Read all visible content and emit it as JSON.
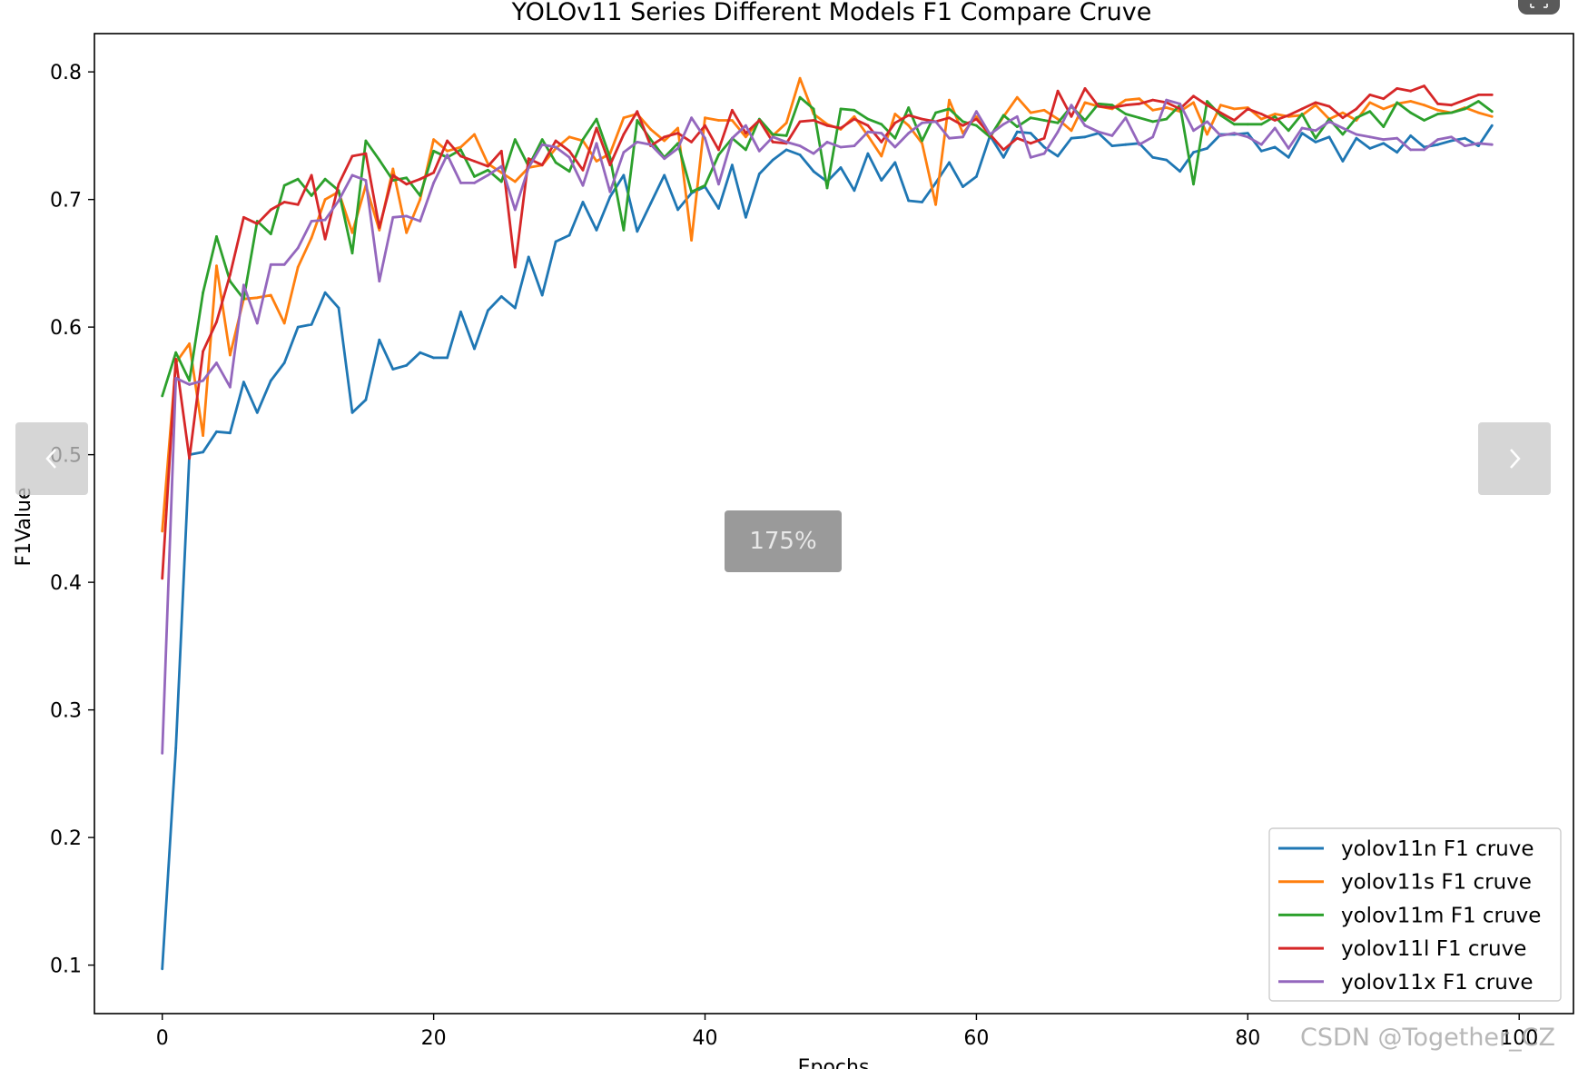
{
  "viewer": {
    "zoom_label": "175%",
    "watermark": "CSDN @Together_CZ",
    "prev_icon": "chevron-left-icon",
    "next_icon": "chevron-right-icon",
    "fullscreen_icon": "fullscreen-icon"
  },
  "chart_data": {
    "type": "line",
    "title": "YOLOv11 Series Different Models F1 Compare Cruve",
    "xlabel": "Epochs",
    "ylabel": "F1Value",
    "xlim": [
      -5,
      104
    ],
    "ylim": [
      0.062,
      0.83
    ],
    "xticks": [
      0,
      20,
      40,
      60,
      80,
      100
    ],
    "xtick_labels": [
      "0",
      "20",
      "40",
      "60",
      "80",
      "100"
    ],
    "yticks": [
      0.1,
      0.2,
      0.3,
      0.4,
      0.5,
      0.6,
      0.7,
      0.8
    ],
    "ytick_labels": [
      "0.1",
      "0.2",
      "0.3",
      "0.4",
      "0.5",
      "0.6",
      "0.7",
      "0.8"
    ],
    "grid": false,
    "legend_position": "bottom-right",
    "series": [
      {
        "name": "yolov11n F1 cruve",
        "color": "#1f77b4",
        "values": [
          0.097,
          0.27,
          0.5,
          0.502,
          0.518,
          0.517,
          0.557,
          0.533,
          0.558,
          0.572,
          0.6,
          0.602,
          0.627,
          0.615,
          0.533,
          0.543,
          0.59,
          0.567,
          0.57,
          0.58,
          0.576,
          0.576,
          0.612,
          0.583,
          0.613,
          0.624,
          0.615,
          0.655,
          0.625,
          0.667,
          0.672,
          0.698,
          0.676,
          0.702,
          0.719,
          0.675,
          0.697,
          0.719,
          0.692,
          0.705,
          0.71,
          0.693,
          0.727,
          0.686,
          0.72,
          0.731,
          0.739,
          0.735,
          0.722,
          0.714,
          0.725,
          0.707,
          0.736,
          0.715,
          0.729,
          0.699,
          0.698,
          0.713,
          0.729,
          0.71,
          0.718,
          0.75,
          0.733,
          0.753,
          0.752,
          0.741,
          0.734,
          0.748,
          0.749,
          0.752,
          0.742,
          0.743,
          0.744,
          0.733,
          0.731,
          0.722,
          0.737,
          0.74,
          0.751,
          0.751,
          0.752,
          0.738,
          0.741,
          0.733,
          0.752,
          0.745,
          0.749,
          0.73,
          0.748,
          0.74,
          0.744,
          0.737,
          0.75,
          0.741,
          0.743,
          0.746,
          0.748,
          0.742,
          0.758
        ]
      },
      {
        "name": "yolov11s F1 cruve",
        "color": "#ff7f0e",
        "values": [
          0.44,
          0.572,
          0.587,
          0.515,
          0.648,
          0.578,
          0.622,
          0.623,
          0.625,
          0.603,
          0.647,
          0.67,
          0.7,
          0.706,
          0.674,
          0.711,
          0.676,
          0.724,
          0.674,
          0.7,
          0.747,
          0.738,
          0.741,
          0.751,
          0.728,
          0.721,
          0.714,
          0.725,
          0.727,
          0.74,
          0.749,
          0.746,
          0.73,
          0.736,
          0.764,
          0.767,
          0.755,
          0.746,
          0.756,
          0.668,
          0.764,
          0.762,
          0.762,
          0.749,
          0.762,
          0.75,
          0.76,
          0.795,
          0.767,
          0.759,
          0.755,
          0.765,
          0.75,
          0.734,
          0.767,
          0.758,
          0.744,
          0.696,
          0.778,
          0.752,
          0.765,
          0.749,
          0.765,
          0.78,
          0.768,
          0.77,
          0.763,
          0.754,
          0.776,
          0.773,
          0.771,
          0.778,
          0.779,
          0.77,
          0.772,
          0.769,
          0.776,
          0.751,
          0.774,
          0.771,
          0.772,
          0.763,
          0.767,
          0.765,
          0.766,
          0.774,
          0.763,
          0.768,
          0.762,
          0.776,
          0.771,
          0.775,
          0.777,
          0.774,
          0.77,
          0.768,
          0.772,
          0.768,
          0.765
        ]
      },
      {
        "name": "yolov11m F1 cruve",
        "color": "#2ca02c",
        "values": [
          0.546,
          0.58,
          0.558,
          0.627,
          0.671,
          0.636,
          0.622,
          0.683,
          0.673,
          0.711,
          0.716,
          0.703,
          0.716,
          0.707,
          0.658,
          0.746,
          0.731,
          0.715,
          0.717,
          0.703,
          0.738,
          0.733,
          0.739,
          0.718,
          0.723,
          0.714,
          0.747,
          0.726,
          0.747,
          0.729,
          0.722,
          0.747,
          0.763,
          0.733,
          0.676,
          0.762,
          0.747,
          0.733,
          0.744,
          0.706,
          0.711,
          0.735,
          0.748,
          0.739,
          0.763,
          0.751,
          0.75,
          0.78,
          0.771,
          0.709,
          0.771,
          0.77,
          0.763,
          0.759,
          0.748,
          0.772,
          0.746,
          0.768,
          0.771,
          0.761,
          0.758,
          0.749,
          0.766,
          0.757,
          0.764,
          0.762,
          0.76,
          0.773,
          0.762,
          0.775,
          0.774,
          0.767,
          0.764,
          0.761,
          0.763,
          0.774,
          0.712,
          0.777,
          0.766,
          0.759,
          0.759,
          0.759,
          0.765,
          0.754,
          0.767,
          0.748,
          0.763,
          0.751,
          0.764,
          0.769,
          0.757,
          0.776,
          0.768,
          0.762,
          0.767,
          0.768,
          0.771,
          0.777,
          0.769
        ]
      },
      {
        "name": "yolov11l F1 cruve",
        "color": "#d62728",
        "values": [
          0.403,
          0.575,
          0.497,
          0.581,
          0.604,
          0.641,
          0.686,
          0.681,
          0.692,
          0.698,
          0.696,
          0.719,
          0.669,
          0.712,
          0.734,
          0.736,
          0.678,
          0.719,
          0.712,
          0.716,
          0.721,
          0.746,
          0.734,
          0.73,
          0.726,
          0.738,
          0.647,
          0.732,
          0.727,
          0.746,
          0.738,
          0.723,
          0.756,
          0.727,
          0.751,
          0.769,
          0.742,
          0.749,
          0.752,
          0.745,
          0.758,
          0.739,
          0.77,
          0.752,
          0.762,
          0.745,
          0.744,
          0.761,
          0.762,
          0.758,
          0.756,
          0.763,
          0.758,
          0.745,
          0.76,
          0.766,
          0.763,
          0.761,
          0.764,
          0.758,
          0.763,
          0.751,
          0.739,
          0.748,
          0.744,
          0.748,
          0.785,
          0.765,
          0.787,
          0.773,
          0.772,
          0.774,
          0.775,
          0.778,
          0.776,
          0.771,
          0.781,
          0.774,
          0.768,
          0.762,
          0.771,
          0.767,
          0.762,
          0.766,
          0.771,
          0.776,
          0.773,
          0.764,
          0.771,
          0.782,
          0.779,
          0.787,
          0.785,
          0.789,
          0.775,
          0.774,
          0.778,
          0.782,
          0.782
        ]
      },
      {
        "name": "yolov11x F1 cruve",
        "color": "#9467bd",
        "values": [
          0.266,
          0.56,
          0.555,
          0.558,
          0.572,
          0.553,
          0.633,
          0.603,
          0.649,
          0.649,
          0.662,
          0.683,
          0.684,
          0.699,
          0.719,
          0.715,
          0.636,
          0.686,
          0.687,
          0.683,
          0.713,
          0.735,
          0.713,
          0.713,
          0.719,
          0.726,
          0.692,
          0.725,
          0.743,
          0.741,
          0.733,
          0.711,
          0.744,
          0.706,
          0.737,
          0.745,
          0.743,
          0.732,
          0.74,
          0.764,
          0.748,
          0.712,
          0.748,
          0.758,
          0.738,
          0.749,
          0.745,
          0.742,
          0.736,
          0.745,
          0.741,
          0.742,
          0.753,
          0.752,
          0.741,
          0.752,
          0.76,
          0.761,
          0.748,
          0.749,
          0.769,
          0.751,
          0.759,
          0.765,
          0.733,
          0.736,
          0.753,
          0.774,
          0.758,
          0.753,
          0.75,
          0.764,
          0.743,
          0.749,
          0.778,
          0.775,
          0.754,
          0.761,
          0.75,
          0.752,
          0.749,
          0.743,
          0.756,
          0.74,
          0.756,
          0.754,
          0.761,
          0.756,
          0.751,
          0.749,
          0.747,
          0.748,
          0.739,
          0.739,
          0.747,
          0.749,
          0.742,
          0.744,
          0.743
        ]
      }
    ]
  }
}
